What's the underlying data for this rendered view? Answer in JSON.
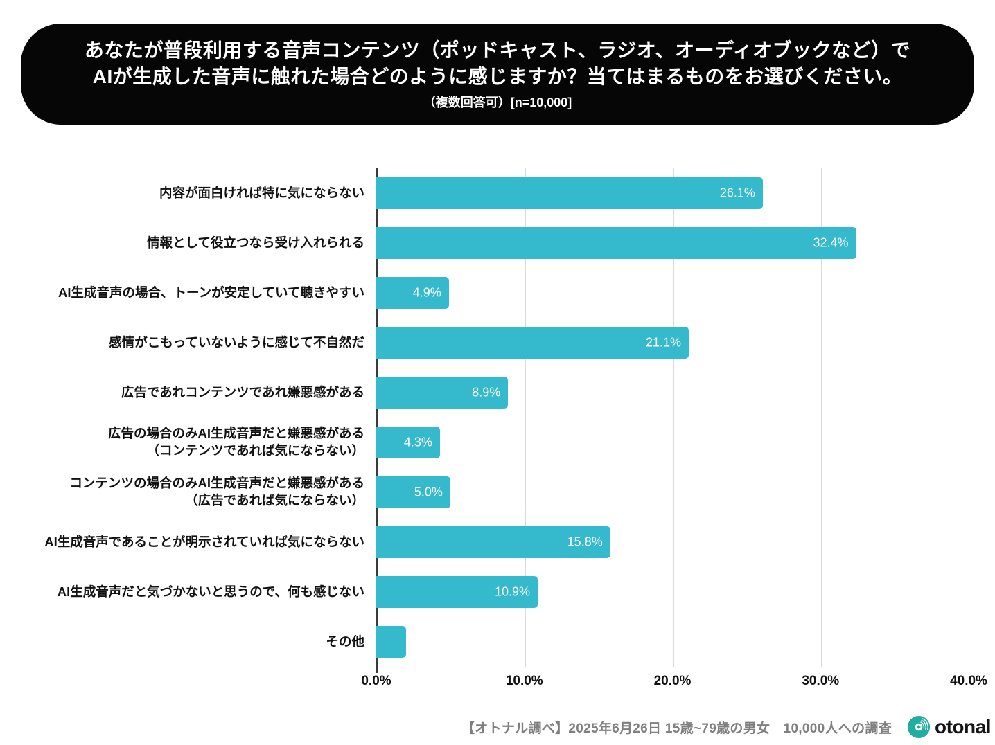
{
  "header": {
    "title_line1": "あなたが普段利用する音声コンテンツ（ポッドキャスト、ラジオ、オーディオブックなど）で",
    "title_line2": "AIが生成した音声に触れた場合どのように感じますか？当てはまるものをお選びください。",
    "subtitle": "（複数回答可）[n=10,000]"
  },
  "chart_data": {
    "type": "bar",
    "orientation": "horizontal",
    "categories": [
      "内容が面白ければ特に気にならない",
      "情報として役立つなら受け入れられる",
      "AI生成音声の場合、トーンが安定していて聴きやすい",
      "感情がこもっていないように感じて不自然だ",
      "広告であれコンテンツであれ嫌悪感がある",
      "広告の場合のみAI生成音声だと嫌悪感がある\n（コンテンツであれば気にならない）",
      "コンテンツの場合のみAI生成音声だと嫌悪感がある\n（広告であれば気にならない）",
      "AI生成音声であることが明示されていれば気にならない",
      "AI生成音声だと気づかないと思うので、何も感じない",
      "その他"
    ],
    "values": [
      26.1,
      32.4,
      4.9,
      21.1,
      8.9,
      4.3,
      5.0,
      15.8,
      10.9,
      2.0
    ],
    "value_labels": [
      "26.1%",
      "32.4%",
      "4.9%",
      "21.1%",
      "8.9%",
      "4.3%",
      "5.0%",
      "15.8%",
      "10.9%",
      ""
    ],
    "xlim": [
      0,
      40
    ],
    "x_ticks": [
      "0.0%",
      "10.0%",
      "20.0%",
      "30.0%",
      "40.0%"
    ],
    "grid": true,
    "bar_color": "#35b9cc"
  },
  "footer": {
    "note": "【オトナル調べ】2025年6月26日 15歳~79歳の男女　10,000人への調査",
    "logo_text": "otonal"
  },
  "colors": {
    "bar": "#35b9cc",
    "header_bg": "#060606",
    "header_text": "#ffffff",
    "gridline": "#d9d9d9",
    "axis": "#3a3a3a",
    "footer_text": "#7f7f7f",
    "logo_teal": "#1fae9f"
  }
}
